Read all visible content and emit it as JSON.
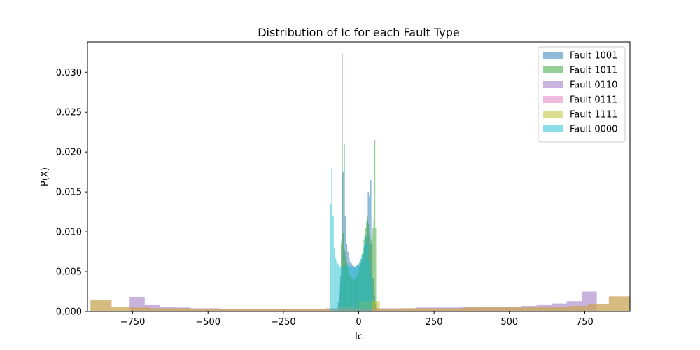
{
  "chart_data": {
    "type": "histogram",
    "title": "Distribution of Ic for each Fault Type",
    "xlabel": "Ic",
    "ylabel": "P(X)",
    "xlim": [
      -900,
      900
    ],
    "ylim": [
      0,
      0.0338
    ],
    "xticks": [
      -750,
      -500,
      -250,
      0,
      250,
      500,
      750
    ],
    "xtick_labels": [
      "−750",
      "−500",
      "−250",
      "0",
      "250",
      "500",
      "750"
    ],
    "yticks": [
      0,
      0.005,
      0.01,
      0.015,
      0.02,
      0.025,
      0.03
    ],
    "ytick_labels": [
      "0.000",
      "0.005",
      "0.010",
      "0.015",
      "0.020",
      "0.025",
      "0.030"
    ],
    "grid": false,
    "legend_position": "top-right",
    "series": [
      {
        "name": "Fault 1001",
        "color": "#1f77b4",
        "bins": [
          [
            -70,
            -66,
            0.0012
          ],
          [
            -66,
            -62,
            0.0025
          ],
          [
            -62,
            -58,
            0.0045
          ],
          [
            -58,
            -54,
            0.009
          ],
          [
            -54,
            -50,
            0.0175
          ],
          [
            -50,
            -46,
            0.021
          ],
          [
            -46,
            -42,
            0.012
          ],
          [
            -42,
            -38,
            0.0085
          ],
          [
            -38,
            -34,
            0.0075
          ],
          [
            -34,
            -30,
            0.0068
          ],
          [
            -30,
            -26,
            0.0062
          ],
          [
            -26,
            -22,
            0.006
          ],
          [
            -22,
            -18,
            0.0058
          ],
          [
            -18,
            -14,
            0.0057
          ],
          [
            -14,
            -10,
            0.0056
          ],
          [
            -10,
            -6,
            0.0057
          ],
          [
            -6,
            -2,
            0.0058
          ],
          [
            -2,
            2,
            0.0058
          ],
          [
            2,
            6,
            0.006
          ],
          [
            6,
            10,
            0.0062
          ],
          [
            10,
            14,
            0.0066
          ],
          [
            14,
            18,
            0.0072
          ],
          [
            18,
            22,
            0.0082
          ],
          [
            22,
            26,
            0.0095
          ],
          [
            26,
            30,
            0.0115
          ],
          [
            30,
            34,
            0.015
          ],
          [
            34,
            38,
            0.0145
          ],
          [
            38,
            42,
            0.0165
          ],
          [
            42,
            46,
            0.0085
          ],
          [
            46,
            50,
            0.0042
          ],
          [
            50,
            54,
            0.002
          ],
          [
            54,
            58,
            0.001
          ]
        ]
      },
      {
        "name": "Fault 1011",
        "color": "#2ca02c",
        "bins": [
          [
            -65,
            -62,
            0.0018
          ],
          [
            -62,
            -59,
            0.0036
          ],
          [
            -59,
            -56,
            0.0085
          ],
          [
            -56,
            -53,
            0.0323
          ],
          [
            -53,
            -50,
            0.0098
          ],
          [
            -50,
            -47,
            0.008
          ],
          [
            -47,
            -44,
            0.0075
          ],
          [
            -44,
            -41,
            0.0069
          ],
          [
            -41,
            -38,
            0.0062
          ],
          [
            -38,
            -35,
            0.0055
          ],
          [
            -35,
            -32,
            0.005
          ],
          [
            -32,
            -29,
            0.0046
          ],
          [
            -29,
            -26,
            0.0044
          ],
          [
            -26,
            -23,
            0.0042
          ],
          [
            -23,
            -20,
            0.0041
          ],
          [
            -20,
            -17,
            0.004
          ],
          [
            -17,
            -14,
            0.004
          ],
          [
            -14,
            -11,
            0.0041
          ],
          [
            -11,
            -8,
            0.0042
          ],
          [
            -8,
            -5,
            0.0044
          ],
          [
            -5,
            -2,
            0.0046
          ],
          [
            -2,
            1,
            0.005
          ],
          [
            1,
            4,
            0.0055
          ],
          [
            4,
            7,
            0.006
          ],
          [
            7,
            10,
            0.0066
          ],
          [
            10,
            13,
            0.0072
          ],
          [
            13,
            16,
            0.008
          ],
          [
            16,
            19,
            0.009
          ],
          [
            19,
            22,
            0.0098
          ],
          [
            22,
            25,
            0.0105
          ],
          [
            25,
            28,
            0.0112
          ],
          [
            28,
            31,
            0.012
          ],
          [
            31,
            34,
            0.011
          ],
          [
            34,
            37,
            0.0095
          ],
          [
            37,
            40,
            0.0085
          ],
          [
            40,
            43,
            0.009
          ],
          [
            43,
            46,
            0.0098
          ],
          [
            46,
            49,
            0.0105
          ],
          [
            49,
            52,
            0.0115
          ],
          [
            52,
            55,
            0.0215
          ],
          [
            55,
            58,
            0.0105
          ]
        ]
      },
      {
        "name": "Fault 0110",
        "color": "#9467bd",
        "bins": [
          [
            -760,
            -710,
            0.0018
          ],
          [
            -710,
            -660,
            0.0008
          ],
          [
            -660,
            -610,
            0.0006
          ],
          [
            -610,
            -560,
            0.0005
          ],
          [
            -560,
            -510,
            0.0004
          ],
          [
            -510,
            -460,
            0.0004
          ],
          [
            -460,
            -410,
            0.0003
          ],
          [
            -410,
            -360,
            0.0003
          ],
          [
            -360,
            -310,
            0.0003
          ],
          [
            -310,
            -260,
            0.0003
          ],
          [
            -260,
            -210,
            0.0003
          ],
          [
            -210,
            -160,
            0.0003
          ],
          [
            -160,
            -110,
            0.0003
          ],
          [
            -110,
            -60,
            0.0004
          ],
          [
            -60,
            -10,
            0.0004
          ],
          [
            -10,
            40,
            0.0004
          ],
          [
            40,
            90,
            0.0004
          ],
          [
            90,
            140,
            0.0004
          ],
          [
            140,
            190,
            0.0004
          ],
          [
            190,
            240,
            0.0005
          ],
          [
            240,
            290,
            0.0005
          ],
          [
            290,
            340,
            0.0005
          ],
          [
            340,
            390,
            0.0006
          ],
          [
            390,
            440,
            0.0006
          ],
          [
            440,
            490,
            0.0006
          ],
          [
            490,
            540,
            0.0006
          ],
          [
            540,
            590,
            0.0007
          ],
          [
            590,
            640,
            0.0008
          ],
          [
            640,
            690,
            0.001
          ],
          [
            690,
            740,
            0.0013
          ],
          [
            740,
            790,
            0.0025
          ]
        ]
      },
      {
        "name": "Fault 0111",
        "color": "#e377c2",
        "bins": [
          [
            -890,
            -820,
            0.0014
          ],
          [
            -820,
            -760,
            0.0006
          ],
          [
            -760,
            -690,
            0.0005
          ],
          [
            -690,
            -620,
            0.0004
          ],
          [
            -620,
            -550,
            0.0004
          ],
          [
            -550,
            -480,
            0.0003
          ],
          [
            -480,
            -410,
            0.0003
          ],
          [
            -410,
            -340,
            0.0003
          ],
          [
            -340,
            -270,
            0.0003
          ],
          [
            -270,
            -200,
            0.0003
          ],
          [
            -200,
            -140,
            0.0003
          ],
          [
            -140,
            -70,
            0.0003
          ],
          [
            -70,
            0,
            0.0005
          ],
          [
            0,
            70,
            0.0004
          ],
          [
            70,
            140,
            0.0003
          ],
          [
            140,
            210,
            0.0004
          ],
          [
            210,
            280,
            0.0004
          ],
          [
            280,
            350,
            0.0004
          ],
          [
            350,
            420,
            0.0005
          ],
          [
            420,
            490,
            0.0005
          ],
          [
            490,
            560,
            0.0005
          ],
          [
            560,
            630,
            0.0006
          ],
          [
            630,
            700,
            0.0006
          ],
          [
            700,
            760,
            0.0007
          ],
          [
            760,
            830,
            0.0009
          ],
          [
            830,
            900,
            0.0019
          ]
        ]
      },
      {
        "name": "Fault 1111",
        "color": "#bcbd22",
        "bins": [
          [
            -890,
            -820,
            0.0014
          ],
          [
            -820,
            -760,
            0.0006
          ],
          [
            -760,
            -690,
            0.0005
          ],
          [
            -690,
            -620,
            0.0004
          ],
          [
            -620,
            -550,
            0.0004
          ],
          [
            -550,
            -480,
            0.0003
          ],
          [
            -480,
            -410,
            0.0003
          ],
          [
            -410,
            -340,
            0.0003
          ],
          [
            -340,
            -270,
            0.0003
          ],
          [
            -270,
            -200,
            0.0003
          ],
          [
            -200,
            -140,
            0.0003
          ],
          [
            -140,
            -70,
            0.0003
          ],
          [
            -70,
            0,
            0.0005
          ],
          [
            0,
            70,
            0.0013
          ],
          [
            70,
            140,
            0.0003
          ],
          [
            140,
            210,
            0.0004
          ],
          [
            210,
            280,
            0.0004
          ],
          [
            280,
            350,
            0.0004
          ],
          [
            350,
            420,
            0.0005
          ],
          [
            420,
            490,
            0.0005
          ],
          [
            490,
            560,
            0.0005
          ],
          [
            560,
            630,
            0.0006
          ],
          [
            630,
            700,
            0.0006
          ],
          [
            700,
            760,
            0.0007
          ],
          [
            760,
            830,
            0.0009
          ],
          [
            830,
            900,
            0.0019
          ]
        ]
      },
      {
        "name": "Fault 0000",
        "color": "#17becf",
        "bins": [
          [
            -95,
            -91,
            0.0135
          ],
          [
            -91,
            -87,
            0.018
          ],
          [
            -87,
            -83,
            0.012
          ],
          [
            -83,
            -79,
            0.008
          ],
          [
            -79,
            -75,
            0.0067
          ],
          [
            -75,
            -71,
            0.0063
          ],
          [
            -71,
            -67,
            0.006
          ],
          [
            -67,
            -63,
            0.0058
          ],
          [
            -63,
            -59,
            0.0056
          ],
          [
            -59,
            -55,
            0.0055
          ],
          [
            -55,
            -51,
            0.0055
          ],
          [
            -51,
            -47,
            0.0056
          ],
          [
            -47,
            -43,
            0.0057
          ],
          [
            -43,
            -39,
            0.0058
          ],
          [
            -39,
            -35,
            0.0058
          ],
          [
            -35,
            -31,
            0.0058
          ],
          [
            -31,
            -27,
            0.0057
          ],
          [
            -27,
            -23,
            0.0056
          ],
          [
            -23,
            -19,
            0.0055
          ],
          [
            -19,
            -15,
            0.0055
          ],
          [
            -15,
            -11,
            0.0055
          ],
          [
            -11,
            -7,
            0.0056
          ],
          [
            -7,
            -3,
            0.0058
          ],
          [
            -3,
            1,
            0.006
          ],
          [
            1,
            5,
            0.0062
          ],
          [
            5,
            9,
            0.0066
          ],
          [
            9,
            13,
            0.007
          ],
          [
            13,
            17,
            0.0075
          ],
          [
            17,
            21,
            0.0082
          ],
          [
            21,
            25,
            0.009
          ],
          [
            25,
            29,
            0.0095
          ],
          [
            29,
            33,
            0.0085
          ],
          [
            33,
            37,
            0.0062
          ],
          [
            37,
            41,
            0.0048
          ],
          [
            41,
            45,
            0.0038
          ]
        ]
      }
    ]
  }
}
